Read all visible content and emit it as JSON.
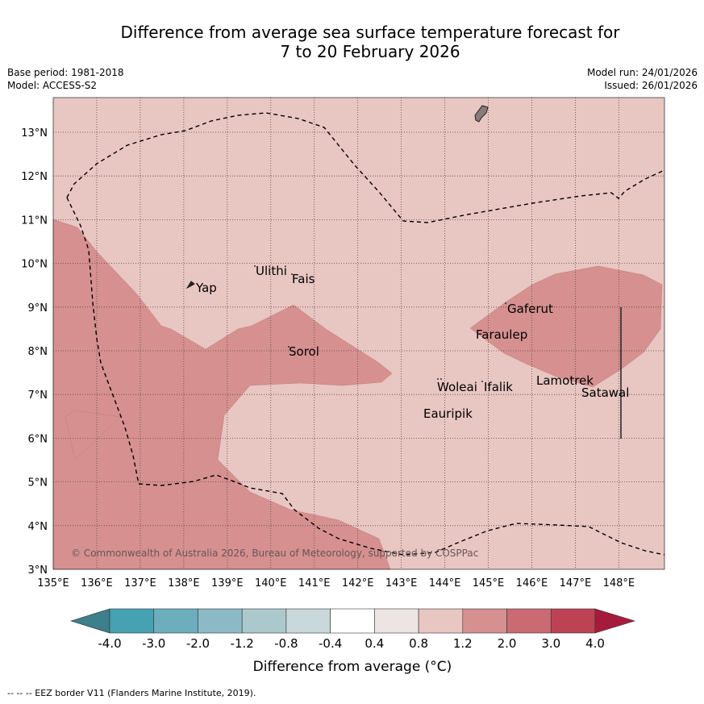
{
  "title": {
    "line1": "Difference from average sea surface temperature forecast for",
    "line2": "7 to 20 February 2026"
  },
  "meta": {
    "base_period": "Base period: 1981-2018",
    "model": "Model: ACCESS-S2",
    "model_run": "Model run: 24/01/2026",
    "issued": "Issued: 26/01/2026"
  },
  "map": {
    "lon_ticks": [
      "135°E",
      "136°E",
      "137°E",
      "138°E",
      "139°E",
      "140°E",
      "141°E",
      "142°E",
      "143°E",
      "144°E",
      "145°E",
      "146°E",
      "147°E",
      "148°E"
    ],
    "lat_ticks": [
      "13°N",
      "12°N",
      "11°N",
      "10°N",
      "9°N",
      "8°N",
      "7°N",
      "6°N",
      "5°N",
      "4°N",
      "3°N"
    ],
    "places": [
      "Ulithi",
      "Fais",
      "Yap",
      "Gaferut",
      "Faraulep",
      "Sorol",
      "Lamotrek",
      "Satawal",
      "Woleai",
      "Ifalik",
      "Eauripik"
    ],
    "copyright": "© Commonwealth of Australia 2026, Bureau of Meteorology, supported by COSPPac",
    "colors": {
      "band_0.8_1.2": "#e8c6c2",
      "band_1.2_2.0": "#d5908f",
      "land": "#8a7a7a"
    }
  },
  "legend": {
    "ticks": [
      "-4.0",
      "-3.0",
      "-2.0",
      "-1.2",
      "-0.8",
      "-0.4",
      "0.4",
      "0.8",
      "1.2",
      "2.0",
      "3.0",
      "4.0"
    ],
    "colors": [
      "#3d7f8a",
      "#46a1b3",
      "#6caebc",
      "#8bbac6",
      "#abc8cd",
      "#c8d8db",
      "#ffffff",
      "#ede5e3",
      "#e8c6c2",
      "#d5908f",
      "#ca6a73",
      "#bd4354",
      "#a61b3c"
    ],
    "label": "Difference from average (°C)"
  },
  "footnote": "--  --  -- EEZ border V11 (Flanders Marine Institute, 2019)."
}
